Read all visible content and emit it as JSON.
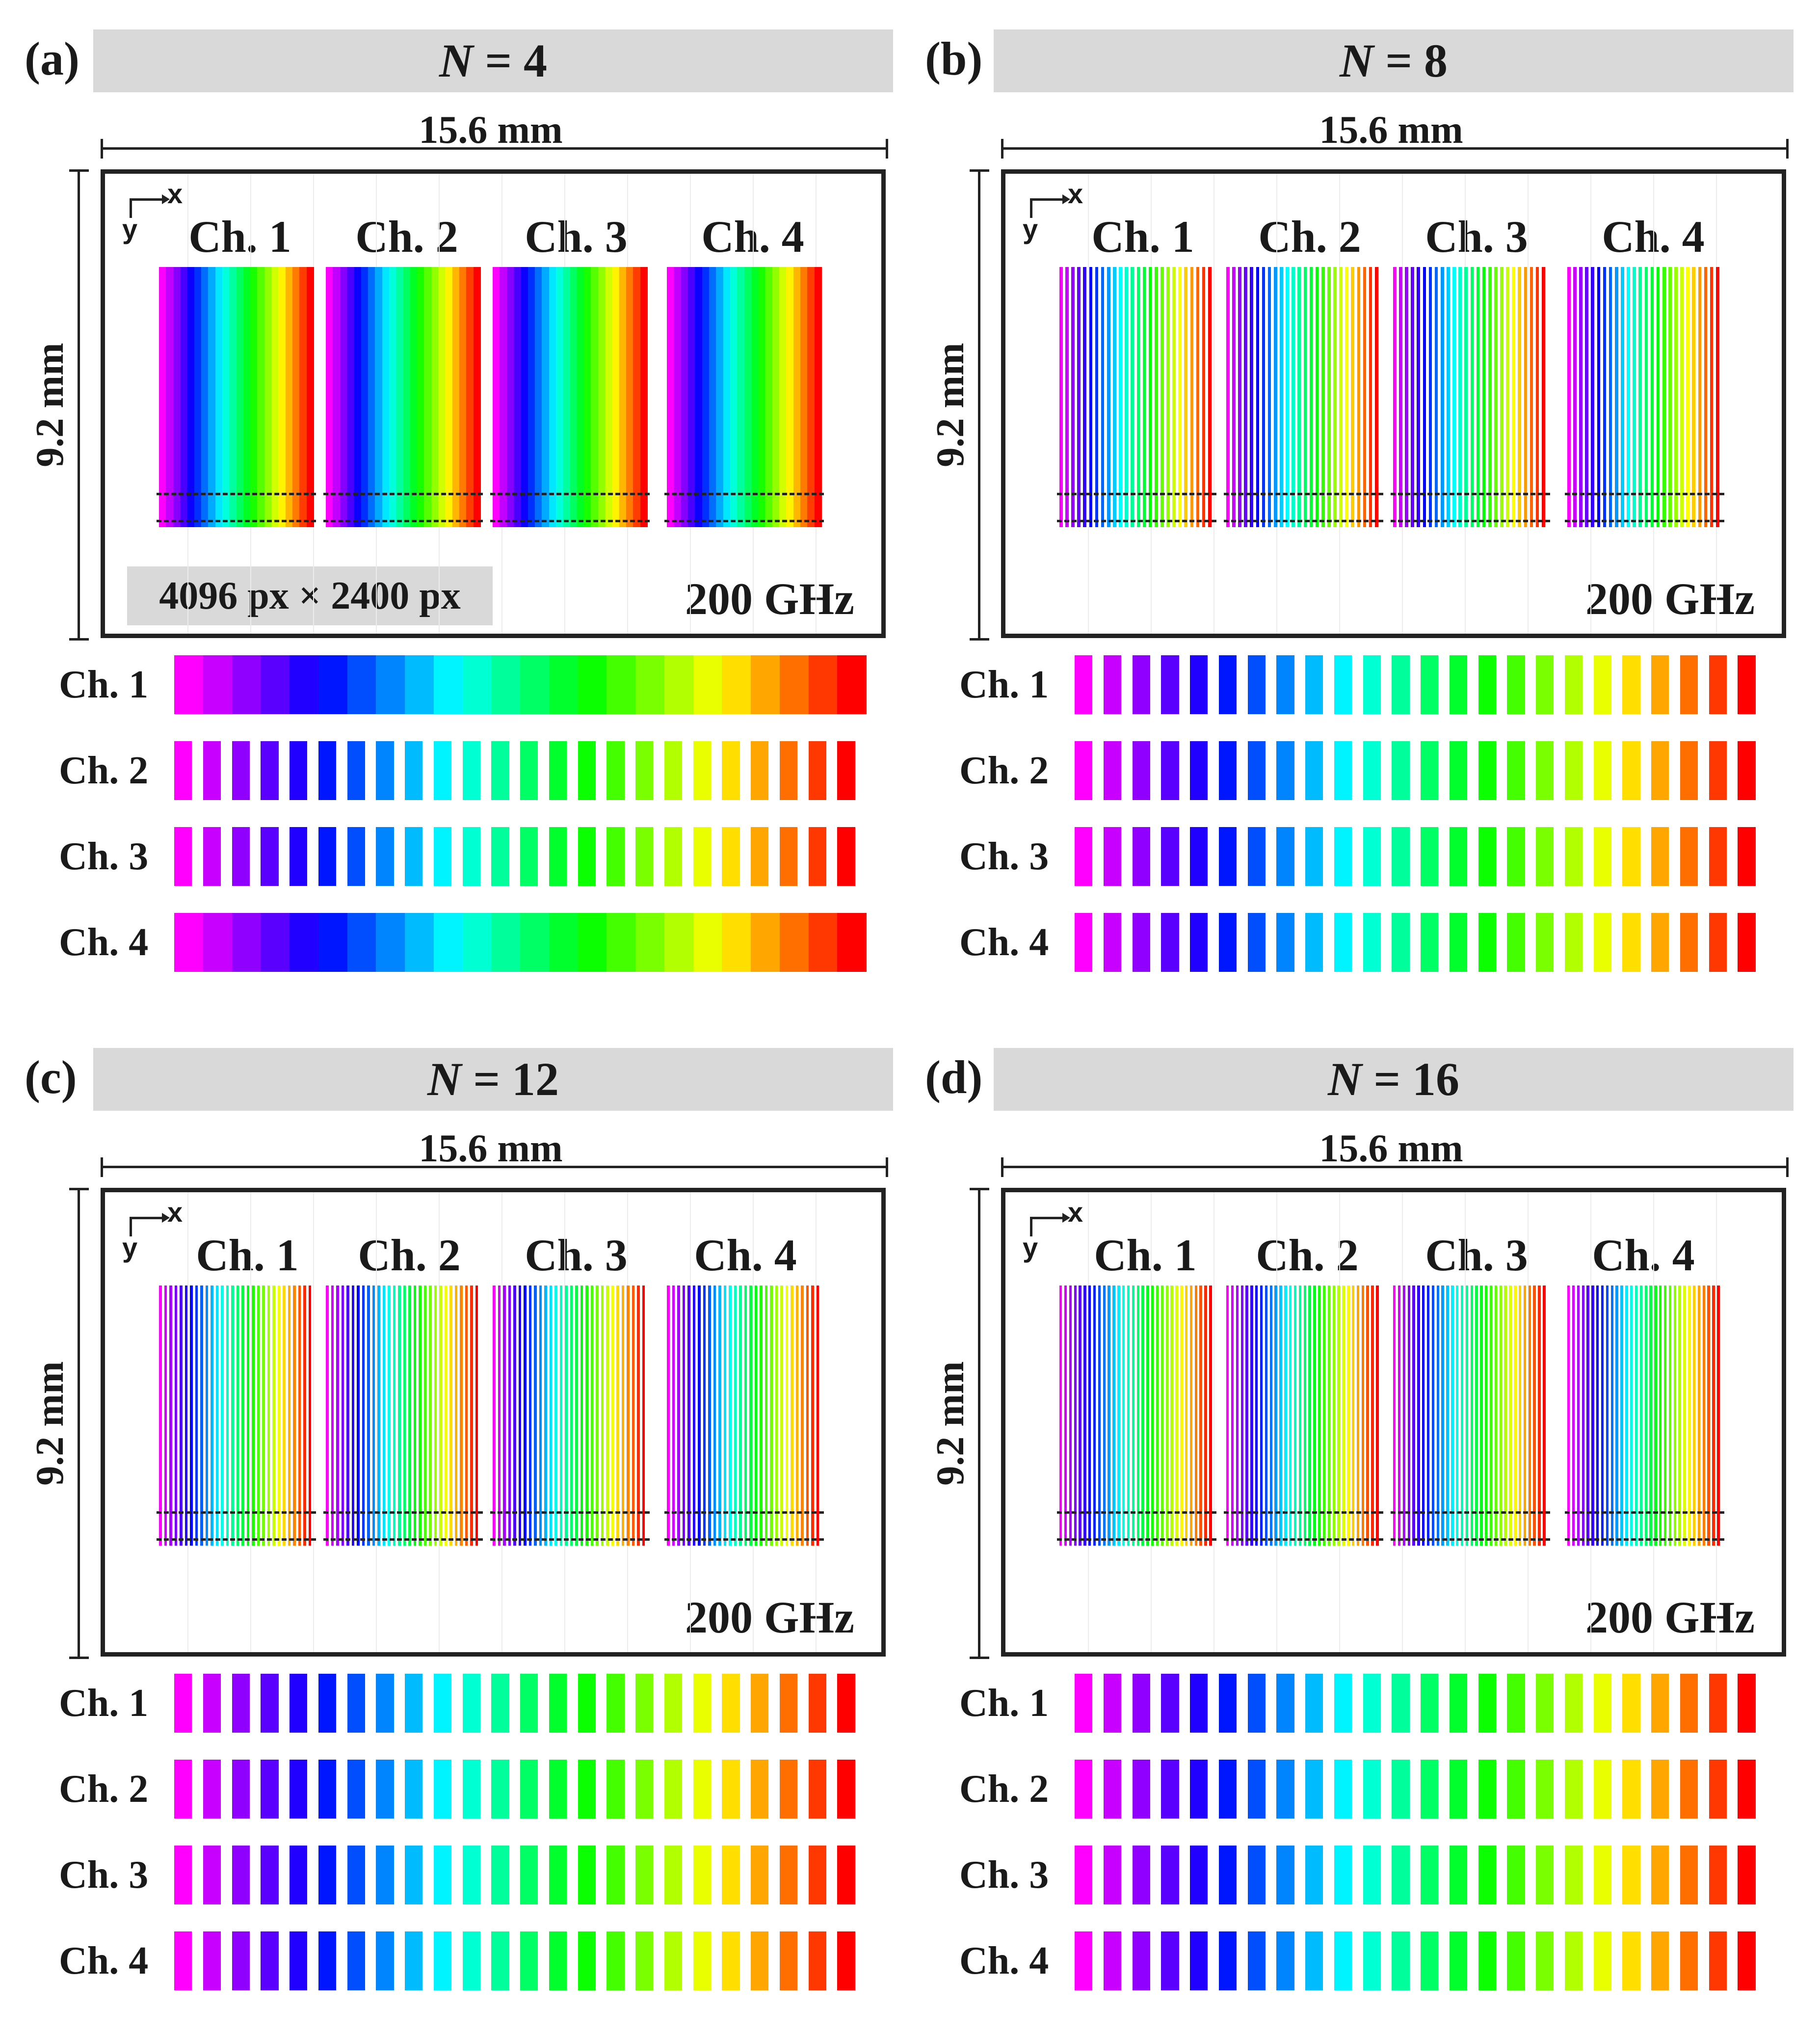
{
  "figure": {
    "panels": [
      {
        "id": "a",
        "label": "(a)",
        "n_var": "N",
        "n_rest": " = 4",
        "n_value": 4,
        "width_label": "15.6 mm",
        "height_label": "9.2 mm",
        "channel_titles": [
          "Ch. 1",
          "Ch. 2",
          "Ch. 3",
          "Ch. 4"
        ],
        "resolution_label": "4096 px × 2400 px",
        "frequency_label": "200 GHz",
        "profile_labels": [
          "Ch. 1",
          "Ch. 2",
          "Ch. 3",
          "Ch. 4"
        ],
        "stripes_per_channel": 22,
        "profile_segments": 24,
        "profile_continuous": [
          true,
          false,
          false,
          true
        ]
      },
      {
        "id": "b",
        "label": "(b)",
        "n_var": "N",
        "n_rest": " = 8",
        "n_value": 8,
        "width_label": "15.6 mm",
        "height_label": "9.2 mm",
        "channel_titles": [
          "Ch. 1",
          "Ch. 2",
          "Ch. 3",
          "Ch. 4"
        ],
        "frequency_label": "200 GHz",
        "profile_labels": [
          "Ch. 1",
          "Ch. 2",
          "Ch. 3",
          "Ch. 4"
        ],
        "stripes_per_channel": 26,
        "profile_segments": 24,
        "profile_continuous": [
          false,
          false,
          false,
          false
        ]
      },
      {
        "id": "c",
        "label": "(c)",
        "n_var": "N",
        "n_rest": " = 12",
        "n_value": 12,
        "width_label": "15.6 mm",
        "height_label": "9.2 mm",
        "channel_titles": [
          "Ch. 1",
          "Ch. 2",
          "Ch. 3",
          "Ch. 4"
        ],
        "frequency_label": "200 GHz",
        "profile_labels": [
          "Ch. 1",
          "Ch. 2",
          "Ch. 3",
          "Ch. 4"
        ],
        "stripes_per_channel": 30,
        "profile_segments": 24,
        "profile_continuous": [
          false,
          false,
          false,
          false
        ]
      },
      {
        "id": "d",
        "label": "(d)",
        "n_var": "N",
        "n_rest": " = 16",
        "n_value": 16,
        "width_label": "15.6 mm",
        "height_label": "9.2 mm",
        "channel_titles": [
          "Ch. 1",
          "Ch. 2",
          "Ch. 3",
          "Ch. 4"
        ],
        "frequency_label": "200 GHz",
        "profile_labels": [
          "Ch. 1",
          "Ch. 2",
          "Ch. 3",
          "Ch. 4"
        ],
        "stripes_per_channel": 32,
        "profile_segments": 24,
        "profile_continuous": [
          false,
          false,
          false,
          false
        ]
      }
    ],
    "colors": {
      "banner": "#d8d9d8",
      "frame": "#222222",
      "hue_start_deg": 300,
      "hue_end_deg": 0
    }
  }
}
